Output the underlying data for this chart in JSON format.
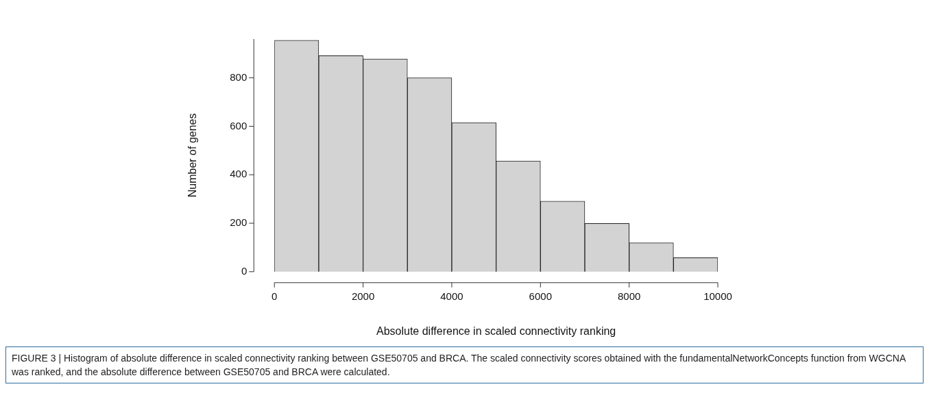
{
  "chart_data": {
    "type": "histogram",
    "xlabel": "Absolute difference in scaled connectivity ranking",
    "ylabel": "Number of genes",
    "bins": [
      0,
      1000,
      2000,
      3000,
      4000,
      5000,
      6000,
      7000,
      8000,
      9000,
      10000
    ],
    "values": [
      955,
      891,
      878,
      800,
      615,
      457,
      291,
      199,
      119,
      58
    ],
    "color": "#d3d3d3",
    "xlim": [
      0,
      10000
    ],
    "ylim": [
      0,
      960
    ],
    "xticks": [
      0,
      2000,
      4000,
      6000,
      8000,
      10000
    ],
    "yticks": [
      0,
      200,
      400,
      600,
      800
    ],
    "grid": false,
    "annotations": [
      "FIGURE 3 | Histogram of absolute difference in scaled connectivity ranking between GSE50705 and BRCA. The scaled connectivity scores obtained with the fundamentalNetworkConcepts function from WGCNA was ranked, and the absolute difference between GSE50705 and BRCA were calculated."
    ]
  }
}
